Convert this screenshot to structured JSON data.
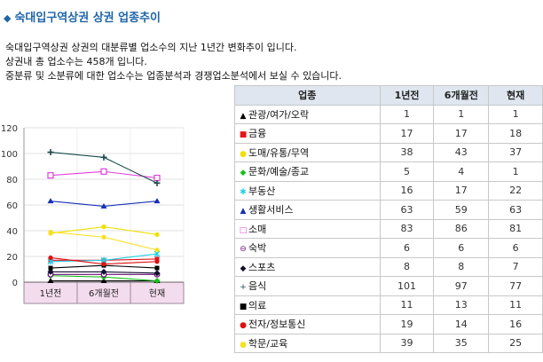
{
  "title": "숙대입구역상권 상권 업종추이",
  "description": [
    "숙대입구역상권 상권의 대분류별 업소수의 지난 1년간 변화추이 입니다.",
    "상권내 총 업소수는 458개 입니다.",
    "중분류 및 소분류에 대한 업소수는 업종분석과 경쟁업소분석에서 보실 수 있습니다."
  ],
  "table": {
    "headers": [
      "업종",
      "1년전",
      "6개월전",
      "현재"
    ]
  },
  "chart_data": {
    "type": "line",
    "categories": [
      "1년전",
      "6개월전",
      "현재"
    ],
    "ylim": [
      0,
      120
    ],
    "yticks": [
      0,
      20,
      40,
      60,
      80,
      100,
      120
    ],
    "grid": true,
    "series": [
      {
        "name": "관광/여가/오락",
        "marker": "▲",
        "color": "#000000",
        "values": [
          1,
          1,
          1
        ]
      },
      {
        "name": "금융",
        "marker": "■",
        "color": "#e8141c",
        "values": [
          17,
          17,
          18
        ]
      },
      {
        "name": "도매/유통/무역",
        "marker": "●",
        "color": "#f0e000",
        "values": [
          38,
          43,
          37
        ]
      },
      {
        "name": "문화/예술/종교",
        "marker": "◆",
        "color": "#18c018",
        "values": [
          5,
          4,
          1
        ]
      },
      {
        "name": "부동산",
        "marker": "✱",
        "color": "#20d0e8",
        "values": [
          16,
          17,
          22
        ]
      },
      {
        "name": "생활서비스",
        "marker": "▲",
        "color": "#1830b8",
        "values": [
          63,
          59,
          63
        ]
      },
      {
        "name": "소매",
        "marker": "□",
        "color": "#e040d8",
        "values": [
          83,
          86,
          81
        ]
      },
      {
        "name": "숙박",
        "marker": "⊖",
        "color": "#6a0a78",
        "values": [
          6,
          6,
          6
        ]
      },
      {
        "name": "스포츠",
        "marker": "◆",
        "color": "#101030",
        "values": [
          8,
          8,
          7
        ]
      },
      {
        "name": "음식",
        "marker": "+",
        "color": "#1a4a4a",
        "values": [
          101,
          97,
          77
        ]
      },
      {
        "name": "의료",
        "marker": "■",
        "color": "#000000",
        "values": [
          11,
          13,
          11
        ]
      },
      {
        "name": "전자/정보통신",
        "marker": "●",
        "color": "#e01010",
        "values": [
          19,
          14,
          16
        ]
      },
      {
        "name": "학문/교육",
        "marker": "●",
        "color": "#f8e020",
        "values": [
          39,
          35,
          25
        ]
      }
    ]
  }
}
